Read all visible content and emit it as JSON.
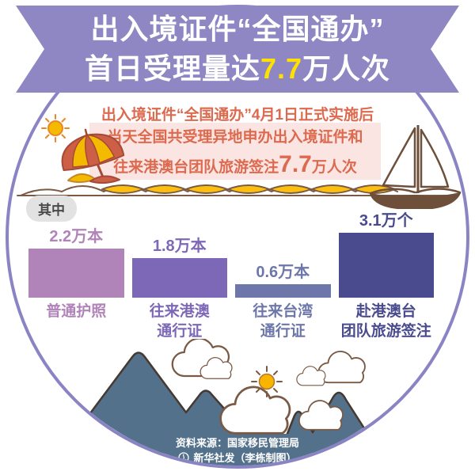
{
  "banner": {
    "line1": "出入境证件“全国通办”",
    "line2_prefix": "首日受理量达",
    "line2_highlight": "7.7",
    "line2_suffix": "万人次"
  },
  "intro": {
    "line1": "出入境证件“全国通办”4月1日正式实施后",
    "box_line1": "当天全国共受理异地申办出入境证件和",
    "box_line2_prefix": "往来港澳台团队旅游签注",
    "box_line2_highlight": "7.7",
    "box_line2_suffix": "万人次"
  },
  "section_label": "其中",
  "chart_data": {
    "type": "bar",
    "title": "出入境证件“全国通办”首日受理量达7.7万人次",
    "categories": [
      "普通护照",
      "往来港澳通行证",
      "往来台湾通行证",
      "赴港澳台团队旅游签注"
    ],
    "category_lines": [
      [
        "普通护照"
      ],
      [
        "往来港澳",
        "通行证"
      ],
      [
        "往来台湾",
        "通行证"
      ],
      [
        "赴港澳台",
        "团队旅游签注"
      ]
    ],
    "values": [
      2.2,
      1.8,
      0.6,
      3.1
    ],
    "value_labels": [
      "2.2万本",
      "1.8万本",
      "0.6万本",
      "3.1万个"
    ],
    "bar_colors": [
      "#b184b9",
      "#7d68b7",
      "#6d77a9",
      "#4a4b8f"
    ],
    "total": 7.7,
    "total_unit": "万人次",
    "ylim": [
      0,
      3.5
    ],
    "grid": false,
    "legend": false
  },
  "footer": {
    "source": "资料来源：国家移民管理局",
    "credit": "新华社发（李栋制图）"
  },
  "colors": {
    "banner_bg": "#8e87c3",
    "banner_highlight": "#ffe100",
    "intro_text": "#dc6a4f",
    "intro_box_bg": "#fbe5e3",
    "circle_border": "#8b84c4",
    "pill_bg": "#e3e2e2",
    "mountain": "#54718b",
    "outline_brown": "#7a5a44",
    "sun": "#f7b500",
    "bead_yellow": "#fdbf0f",
    "umbrella_red": "#cc5f45",
    "umbrella_yellow": "#f3ba00",
    "hull_brown": "#6d4f3a",
    "footer_text": "#ffffff"
  },
  "icons": {
    "sun-icon": "☀",
    "beach-umbrella-icon": "⛱",
    "sailboat-icon": "⛵",
    "cloud-icon": "☁",
    "mountain-icon": "⛰",
    "xinhua-emblem-icon": "◉"
  }
}
